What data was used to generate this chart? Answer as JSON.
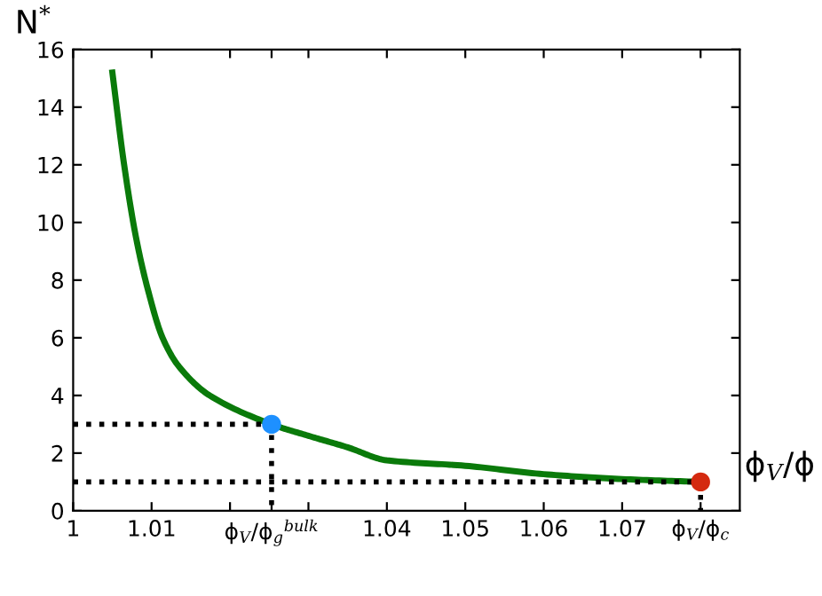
{
  "chart_data": {
    "type": "line",
    "xlabel": "ϕ$_{V}$/ϕ",
    "ylabel": "N$^{*}$",
    "xlim": [
      1,
      1.085
    ],
    "ylim": [
      0,
      16
    ],
    "xticks": [
      1,
      1.01,
      {
        "value": 1.02,
        "label": null
      },
      {
        "value": 1.0253,
        "label": "ϕ$_{V}$/ϕ$_{g}$$^{bulk}$"
      },
      {
        "value": 1.03,
        "label": null
      },
      1.04,
      1.05,
      1.06,
      1.07,
      {
        "value": 1.08,
        "label": "ϕ$_{V}$/ϕ$_{c}$"
      }
    ],
    "yticks": [
      0,
      2,
      4,
      6,
      8,
      10,
      12,
      14,
      16
    ],
    "grid": false,
    "legend": false,
    "series": [
      {
        "color": "#0a7a0a",
        "line_style": "solid",
        "marker": "none",
        "x": [
          1.005,
          1.0065,
          1.008,
          1.0095,
          1.0114,
          1.0135,
          1.0174,
          1.0253,
          1.03,
          1.035,
          1.04,
          1.05,
          1.06,
          1.07,
          1.08
        ],
        "values": [
          15.2,
          12,
          9.5,
          7.7,
          6,
          5,
          4,
          3,
          2.6,
          2.2,
          1.75,
          1.56,
          1.27,
          1.1,
          1.0
        ]
      },
      {
        "type": "line",
        "color": "#000000",
        "line_style": "dotted",
        "marker": "none",
        "x": [
          1,
          1.0253,
          1.0253
        ],
        "values": [
          3,
          3,
          0
        ]
      },
      {
        "type": "line",
        "color": "#000000",
        "line_style": "dotted",
        "marker": "none",
        "x": [
          1,
          1.08,
          1.08
        ],
        "values": [
          1,
          1,
          0
        ]
      },
      {
        "type": "scatter",
        "color": "#1e90ff",
        "marker": "circle",
        "x": [
          1.0253
        ],
        "values": [
          3
        ]
      },
      {
        "type": "scatter",
        "color": "#d42a10",
        "marker": "circle",
        "x": [
          1.08
        ],
        "values": [
          1
        ]
      }
    ]
  }
}
